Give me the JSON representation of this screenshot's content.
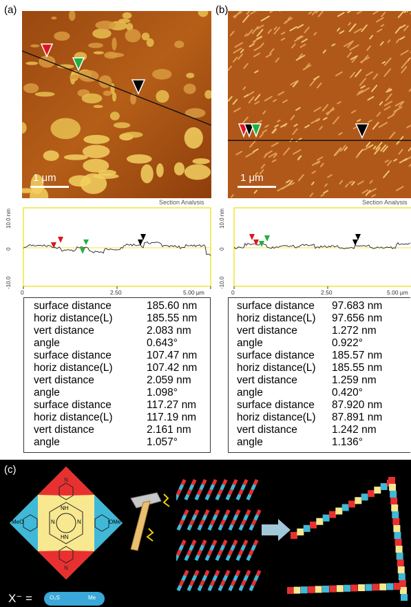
{
  "panels": {
    "a": {
      "label": "(a)",
      "scale_text": "1 μm",
      "section_title": "Section Analysis"
    },
    "b": {
      "label": "(b)",
      "scale_text": "1 μm",
      "section_title": "Section Analysis"
    },
    "c": {
      "label": "(c)"
    }
  },
  "profile_axes": {
    "a": {
      "y_top": "10.0 nm",
      "y_mid": "0",
      "y_bottom": "-10.0",
      "x0": "0",
      "x1": "2.50",
      "x2": "5.00 μm"
    },
    "b": {
      "y_top": "10.0 nm",
      "y_mid": "0",
      "y_bottom": "-10.0",
      "x0": "0",
      "x1": "2.50",
      "x2": "5.00 μm"
    }
  },
  "measurements_a": [
    {
      "key": "surface distance",
      "value": "185.60 nm"
    },
    {
      "key": "horiz distance(L)",
      "value": "185.55 nm"
    },
    {
      "key": "vert distance",
      "value": "2.083 nm"
    },
    {
      "key": "angle",
      "value": "0.643°"
    },
    {
      "key": "surface distance",
      "value": "107.47 nm"
    },
    {
      "key": "horiz distance(L)",
      "value": "107.42 nm"
    },
    {
      "key": "vert distance",
      "value": "2.059 nm"
    },
    {
      "key": "angle",
      "value": "1.098°"
    },
    {
      "key": "surface distance",
      "value": "117.27 nm"
    },
    {
      "key": "horiz distance(L)",
      "value": "117.19 nm"
    },
    {
      "key": "vert distance",
      "value": "2.161 nm"
    },
    {
      "key": "angle",
      "value": "1.057°"
    }
  ],
  "measurements_b": [
    {
      "key": "surface distance",
      "value": "97.683 nm"
    },
    {
      "key": "horiz distance(L)",
      "value": "97.656 nm"
    },
    {
      "key": "vert distance",
      "value": "1.272 nm"
    },
    {
      "key": "angle",
      "value": "0.922°"
    },
    {
      "key": "surface distance",
      "value": "185.57 nm"
    },
    {
      "key": "horiz distance(L)",
      "value": "185.55 nm"
    },
    {
      "key": "vert distance",
      "value": "1.259 nm"
    },
    {
      "key": "angle",
      "value": "0.420°"
    },
    {
      "key": "surface distance",
      "value": "87.920 nm"
    },
    {
      "key": "horiz distance(L)",
      "value": "87.891 nm"
    },
    {
      "key": "vert distance",
      "value": "1.242 nm"
    },
    {
      "key": "angle",
      "value": "1.136°"
    }
  ],
  "scheme": {
    "methoxy_left": "MeO",
    "methoxy_right": "OMe",
    "nh_top": "NH",
    "n_left": "N",
    "n_right": "N",
    "hn_bottom": "HN",
    "anion_label": "X⁻ =",
    "anion_left": "O₃S",
    "anion_right": "Me"
  },
  "colors": {
    "afm_dark": "#7a3a0a",
    "afm_mid": "#c8701e",
    "afm_light": "#f2d060",
    "profile_frame": "#e8e000",
    "marker_red": "#e0141e",
    "marker_green": "#20b040",
    "marker_black": "#000000",
    "block_red": "#e83030",
    "block_cyan": "#40b8d8",
    "block_yellow": "#f8e890"
  }
}
